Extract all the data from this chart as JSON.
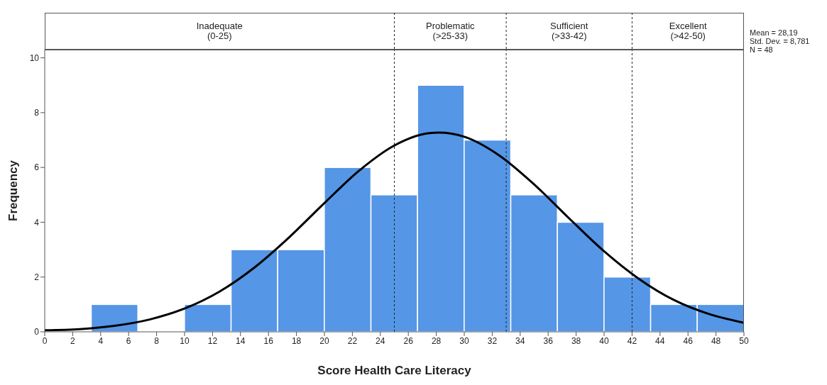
{
  "chart_data": {
    "type": "histogram",
    "xlabel": "Score Health Care Literacy",
    "ylabel": "Frequency",
    "bins": [
      3.333,
      6.667,
      10,
      13.333,
      16.667,
      20,
      23.333,
      26.667,
      30,
      33.333,
      36.667,
      40,
      43.333,
      46.667,
      50
    ],
    "values": [
      1,
      0,
      1,
      3,
      3,
      6,
      5,
      9,
      7,
      5,
      4,
      2,
      1,
      1
    ],
    "color": "#5596e6",
    "series": [
      {
        "type": "line",
        "color": "#000000",
        "x": [
          0,
          2.5,
          5,
          7.5,
          10,
          12.5,
          15,
          17.5,
          20,
          22.5,
          25,
          27.5,
          28.19,
          30,
          32.5,
          35,
          37.5,
          40,
          42.5,
          45,
          47.5,
          50
        ],
        "values": [
          0.06,
          0.1,
          0.22,
          0.45,
          0.85,
          1.47,
          2.35,
          3.46,
          4.7,
          5.89,
          6.8,
          7.25,
          7.27,
          7.12,
          6.44,
          5.38,
          4.14,
          2.94,
          1.93,
          1.16,
          0.65,
          0.33
        ]
      }
    ],
    "xlim": [
      0,
      50
    ],
    "xticks": [
      0,
      2,
      4,
      6,
      8,
      10,
      12,
      14,
      16,
      18,
      20,
      22,
      24,
      26,
      28,
      30,
      32,
      34,
      36,
      38,
      40,
      42,
      44,
      46,
      48,
      50
    ],
    "ylim": [
      0,
      10.3
    ],
    "yticks": [
      0,
      2,
      4,
      6,
      8,
      10
    ],
    "grid": false,
    "legend": false,
    "marker": "none",
    "line_style": "solid",
    "ref_lines": [
      {
        "axis": "x",
        "value": 25,
        "line_style": "dashed"
      },
      {
        "axis": "x",
        "value": 33,
        "line_style": "dashed"
      },
      {
        "axis": "x",
        "value": 42,
        "line_style": "dashed"
      }
    ],
    "annotations": [
      "Inadequate\n(0-25)",
      "Problematic\n(>25-33)",
      "Sufficient\n(>33-42)",
      "Excellent\n(>42-50)",
      "Mean = 28,19",
      "Std. Dev. = 8,781",
      "N = 48"
    ]
  }
}
